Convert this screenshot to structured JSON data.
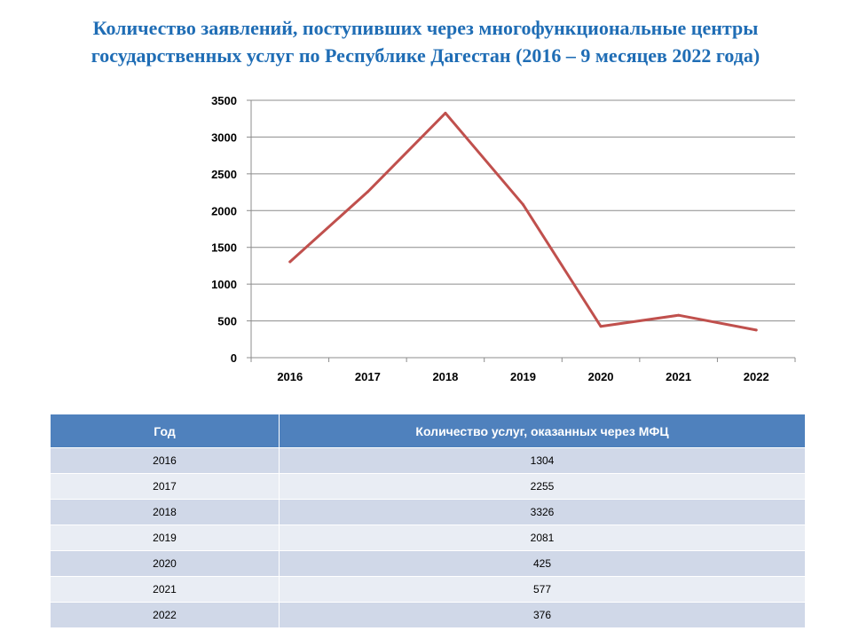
{
  "title": {
    "line1": "Количество заявлений, поступивших через многофункциональные центры",
    "line2": "государственных услуг по Республике Дагестан (2016 – 9 месяцев 2022 года)"
  },
  "colors": {
    "title": "#1f6db5",
    "line": "#c0504d",
    "table_header": "#4f81bd",
    "row_odd": "#d0d8e8",
    "row_even": "#e9edf4"
  },
  "chart_data": {
    "type": "line",
    "title": "Количество заявлений, поступивших через многофункциональные центры государственных услуг по Республике Дагестан (2016 – 9 месяцев 2022 года)",
    "categories": [
      "2016",
      "2017",
      "2018",
      "2019",
      "2020",
      "2021",
      "2022"
    ],
    "series": [
      {
        "values": [
          1304,
          2255,
          3326,
          2081,
          425,
          577,
          376
        ]
      }
    ],
    "yticks": [
      "0",
      "500",
      "1000",
      "1500",
      "2000",
      "2500",
      "3000",
      "3500"
    ],
    "ylim": [
      0,
      3500
    ],
    "grid": true,
    "legend": "none"
  },
  "table": {
    "headers": [
      "Год",
      "Количество услуг, оказанных через МФЦ"
    ],
    "rows": [
      [
        "2016",
        "1304"
      ],
      [
        "2017",
        "2255"
      ],
      [
        "2018",
        "3326"
      ],
      [
        "2019",
        "2081"
      ],
      [
        "2020",
        "425"
      ],
      [
        "2021",
        "577"
      ],
      [
        "2022",
        "376"
      ]
    ]
  }
}
